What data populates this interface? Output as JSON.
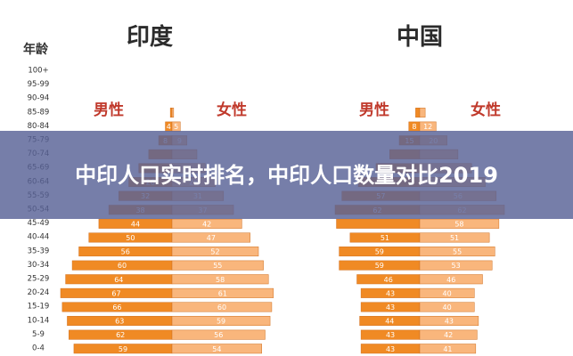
{
  "headline": "中印人口实时排名，中印人口数量对比2019",
  "colors": {
    "male_bar": "#f08a24",
    "female_bar": "#f9b67c",
    "bar_outline": "#d07020",
    "male_label": "#c0392b",
    "female_label": "#c0392b",
    "title": "#2b2b2b",
    "axis_text": "#333333",
    "bar_value_text": "#ffffff",
    "banner": "#586296",
    "banner_text": "#ffffff"
  },
  "chart_data": [
    {
      "type": "bar",
      "orientation": "horizontal",
      "layout": "population-pyramid",
      "title": "印度",
      "ylabel": "年龄",
      "categories": [
        "100+",
        "95-99",
        "90-94",
        "85-89",
        "80-84",
        "75-79",
        "70-74",
        "65-69",
        "60-64",
        "55-59",
        "50-54",
        "45-49",
        "40-44",
        "35-39",
        "30-34",
        "25-29",
        "20-24",
        "15-19",
        "10-14",
        "5-9",
        "0-4"
      ],
      "series": [
        {
          "name": "男性",
          "values": [
            0,
            0,
            0,
            1,
            4,
            8,
            14,
            20,
            26,
            32,
            38,
            44,
            50,
            56,
            60,
            64,
            67,
            66,
            63,
            62,
            59
          ]
        },
        {
          "name": "女性",
          "values": [
            0,
            0,
            0,
            1,
            5,
            9,
            15,
            20,
            26,
            31,
            37,
            42,
            47,
            52,
            55,
            58,
            61,
            60,
            59,
            56,
            54
          ]
        }
      ],
      "value_labels": {
        "男性": [
          "",
          "",
          "",
          "",
          "4",
          "8",
          "",
          "",
          "26",
          "32",
          "38",
          "44",
          "50",
          "56",
          "60",
          "64",
          "67",
          "66",
          "63",
          "62",
          "59"
        ],
        "女性": [
          "",
          "",
          "",
          "",
          "5",
          "9",
          "",
          "",
          "26",
          "31",
          "37",
          "42",
          "47",
          "52",
          "55",
          "58",
          "61",
          "60",
          "59",
          "56",
          "54"
        ]
      },
      "xlim": [
        0,
        70
      ]
    },
    {
      "type": "bar",
      "orientation": "horizontal",
      "layout": "population-pyramid",
      "title": "中国",
      "ylabel": "",
      "categories": [
        "100+",
        "95-99",
        "90-94",
        "85-89",
        "80-84",
        "75-79",
        "70-74",
        "65-69",
        "60-64",
        "55-59",
        "50-54",
        "45-49",
        "40-44",
        "35-39",
        "30-34",
        "25-29",
        "20-24",
        "15-19",
        "10-14",
        "5-9",
        "0-4"
      ],
      "series": [
        {
          "name": "男性",
          "values": [
            0,
            0,
            0,
            3,
            8,
            15,
            22,
            32,
            45,
            57,
            62,
            61,
            51,
            59,
            59,
            46,
            43,
            43,
            44,
            43,
            43
          ]
        },
        {
          "name": "女性",
          "values": [
            0,
            0,
            0,
            4,
            12,
            20,
            28,
            38,
            48,
            56,
            62,
            58,
            51,
            55,
            53,
            46,
            40,
            40,
            43,
            42,
            41
          ]
        }
      ],
      "value_labels": {
        "男性": [
          "",
          "",
          "",
          "",
          "8",
          "15",
          "",
          "",
          "",
          "57",
          "62",
          "",
          "51",
          "59",
          "59",
          "46",
          "43",
          "43",
          "44",
          "43",
          "43"
        ],
        "女性": [
          "",
          "",
          "",
          "",
          "12",
          "20",
          "",
          "",
          "",
          "56",
          "62",
          "58",
          "51",
          "55",
          "53",
          "46",
          "40",
          "40",
          "43",
          "42",
          "41"
        ]
      },
      "xlim": [
        0,
        70
      ]
    }
  ]
}
